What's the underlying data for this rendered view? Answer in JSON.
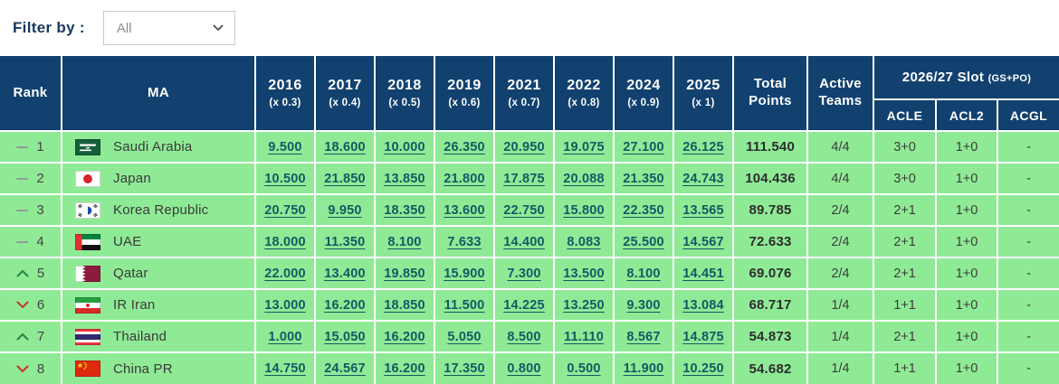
{
  "colors": {
    "header_navy": "#12416F",
    "row_green": "#8FEA96",
    "link_teal": "#135A63",
    "up_green": "#2E8B46",
    "down_red": "#C23B34",
    "label_navy": "#16395E"
  },
  "filter": {
    "label": "Filter by :",
    "selected": "All"
  },
  "table": {
    "headers": {
      "rank": "Rank",
      "ma": "MA",
      "years": [
        {
          "label": "2016",
          "mult": "(x 0.3)"
        },
        {
          "label": "2017",
          "mult": "(x 0.4)"
        },
        {
          "label": "2018",
          "mult": "(x 0.5)"
        },
        {
          "label": "2019",
          "mult": "(x 0.6)"
        },
        {
          "label": "2021",
          "mult": "(x 0.7)"
        },
        {
          "label": "2022",
          "mult": "(x 0.8)"
        },
        {
          "label": "2024",
          "mult": "(x 0.9)"
        },
        {
          "label": "2025",
          "mult": "(x 1)"
        }
      ],
      "total": "Total Points",
      "active": "Active Teams",
      "slot_group": "2026/27 Slot",
      "slot_note": "(GS+PO)",
      "slot_cols": [
        "ACLE",
        "ACL2",
        "ACGL"
      ]
    },
    "rows": [
      {
        "change": "same",
        "rank": "1",
        "flag": "sa",
        "country": "Saudi Arabia",
        "scores": [
          "9.500",
          "18.600",
          "10.000",
          "26.350",
          "20.950",
          "19.075",
          "27.100",
          "26.125"
        ],
        "total": "111.540",
        "active": "4/4",
        "acle": "3+0",
        "acl2": "1+0",
        "acgl": "-"
      },
      {
        "change": "same",
        "rank": "2",
        "flag": "jp",
        "country": "Japan",
        "scores": [
          "10.500",
          "21.850",
          "13.850",
          "21.800",
          "17.875",
          "20.088",
          "21.350",
          "24.743"
        ],
        "total": "104.436",
        "active": "4/4",
        "acle": "3+0",
        "acl2": "1+0",
        "acgl": "-"
      },
      {
        "change": "same",
        "rank": "3",
        "flag": "kr",
        "country": "Korea Republic",
        "scores": [
          "20.750",
          "9.950",
          "18.350",
          "13.600",
          "22.750",
          "15.800",
          "22.350",
          "13.565"
        ],
        "total": "89.785",
        "active": "2/4",
        "acle": "2+1",
        "acl2": "1+0",
        "acgl": "-"
      },
      {
        "change": "same",
        "rank": "4",
        "flag": "ae",
        "country": "UAE",
        "scores": [
          "18.000",
          "11.350",
          "8.100",
          "7.633",
          "14.400",
          "8.083",
          "25.500",
          "14.567"
        ],
        "total": "72.633",
        "active": "2/4",
        "acle": "2+1",
        "acl2": "1+0",
        "acgl": "-"
      },
      {
        "change": "up",
        "rank": "5",
        "flag": "qa",
        "country": "Qatar",
        "scores": [
          "22.000",
          "13.400",
          "19.850",
          "15.900",
          "7.300",
          "13.500",
          "8.100",
          "14.451"
        ],
        "total": "69.076",
        "active": "2/4",
        "acle": "2+1",
        "acl2": "1+0",
        "acgl": "-"
      },
      {
        "change": "down",
        "rank": "6",
        "flag": "ir",
        "country": "IR Iran",
        "scores": [
          "13.000",
          "16.200",
          "18.850",
          "11.500",
          "14.225",
          "13.250",
          "9.300",
          "13.084"
        ],
        "total": "68.717",
        "active": "1/4",
        "acle": "1+1",
        "acl2": "1+0",
        "acgl": "-"
      },
      {
        "change": "up",
        "rank": "7",
        "flag": "th",
        "country": "Thailand",
        "scores": [
          "1.000",
          "15.050",
          "16.200",
          "5.050",
          "8.500",
          "11.110",
          "8.567",
          "14.875"
        ],
        "total": "54.873",
        "active": "1/4",
        "acle": "2+1",
        "acl2": "1+0",
        "acgl": "-"
      },
      {
        "change": "down",
        "rank": "8",
        "flag": "cn",
        "country": "China PR",
        "scores": [
          "14.750",
          "24.567",
          "16.200",
          "17.350",
          "0.800",
          "0.500",
          "11.900",
          "10.250"
        ],
        "total": "54.682",
        "active": "1/4",
        "acle": "1+1",
        "acl2": "1+0",
        "acgl": "-"
      }
    ]
  }
}
